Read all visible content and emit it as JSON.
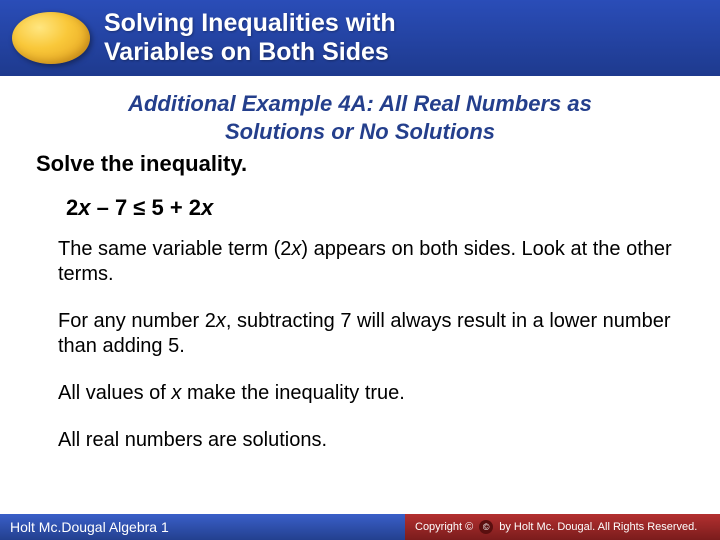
{
  "header": {
    "title_line1": "Solving Inequalities with",
    "title_line2": "Variables on Both Sides"
  },
  "example": {
    "title_line1": "Additional Example 4A: All Real Numbers as",
    "title_line2": "Solutions or No Solutions",
    "instruction": "Solve the inequality.",
    "inequality_prefix": "2",
    "inequality_var1": "x",
    "inequality_mid": " – 7 ≤ 5 + 2",
    "inequality_var2": "x",
    "p1_a": "The same variable term (2",
    "p1_var": "x",
    "p1_b": ") appears on both sides. Look at the other terms.",
    "p2_a": "For any number 2",
    "p2_var": "x",
    "p2_b": ", subtracting 7 will always result in a lower number than adding 5.",
    "p3_a": "All values of ",
    "p3_var": "x",
    "p3_b": " make the inequality true.",
    "p4": "All real numbers are solutions."
  },
  "footer": {
    "left": "Holt Mc.Dougal Algebra 1",
    "right": "by Holt Mc. Dougal. All Rights Reserved.",
    "copyright": "Copyright ©"
  },
  "colors": {
    "header_bg_top": "#2a4db8",
    "header_bg_bottom": "#1e3a8e",
    "title_color": "#243f8c",
    "footer_left_bg": "#23408f",
    "footer_right_bg": "#7a1c1c"
  }
}
